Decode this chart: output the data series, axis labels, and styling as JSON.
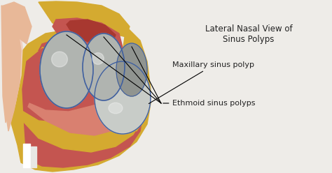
{
  "title_line1": "Lateral Nasal View of",
  "title_line2": "Sinus Polyps",
  "label1": "Ethmoid sinus polyps",
  "label2": "Maxillary sinus polyp",
  "bg_color": "#eeece8",
  "title_fontsize": 8.5,
  "label_fontsize": 8.0,
  "nose_red": "#c45550",
  "nose_dark_red": "#a83830",
  "nose_pink": "#d98070",
  "yellow_bone": "#d4aa30",
  "yellow_light": "#e8c850",
  "skin_pink": "#e8b898",
  "skin_light": "#f0d0c0",
  "polyp_gray": "#b0b4b0",
  "polyp_dark": "#909490",
  "polyp_outline": "#4060a0",
  "polyp_light": "#c8ccc8",
  "text_color": "#222222"
}
